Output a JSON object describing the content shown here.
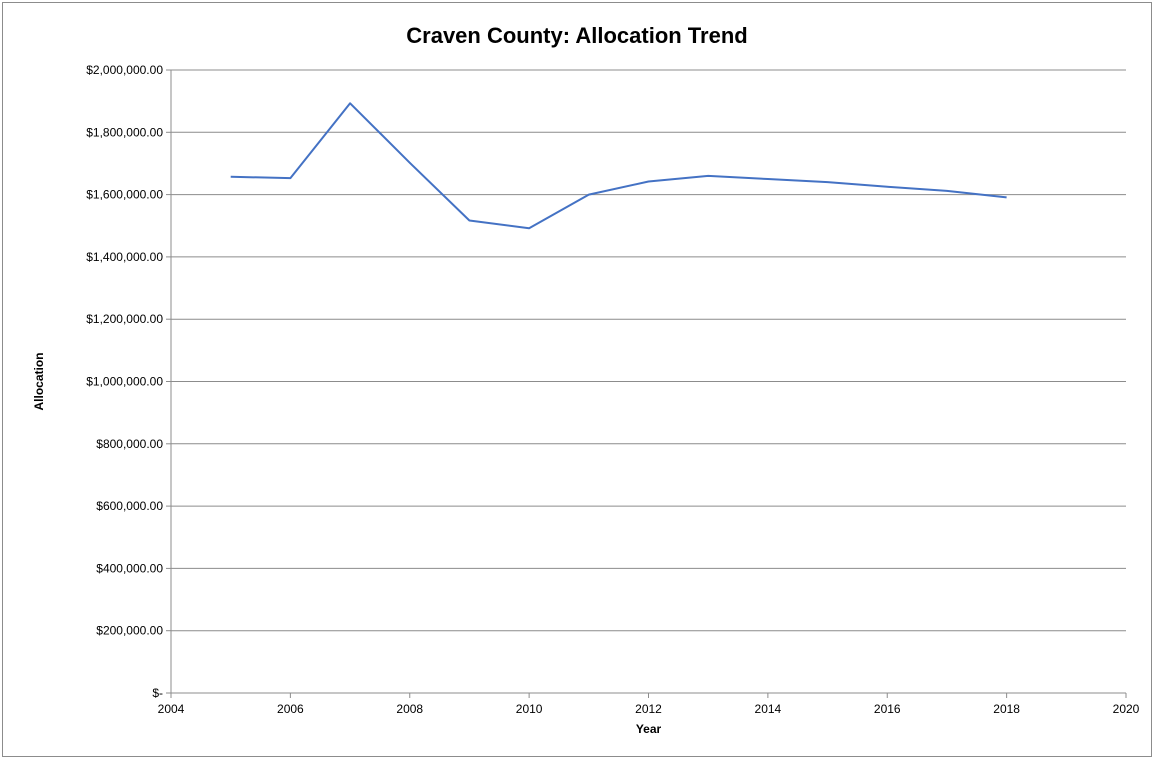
{
  "chart_data": {
    "type": "line",
    "title": "Craven County: Allocation Trend",
    "xlabel": "Year",
    "ylabel": "Allocation",
    "xlim": [
      2004,
      2020
    ],
    "ylim": [
      0,
      2000000
    ],
    "x_ticks": [
      2004,
      2006,
      2008,
      2010,
      2012,
      2014,
      2016,
      2018,
      2020
    ],
    "x_tick_labels": [
      "2004",
      "2006",
      "2008",
      "2010",
      "2012",
      "2014",
      "2016",
      "2018",
      "2020"
    ],
    "y_ticks": [
      0,
      200000,
      400000,
      600000,
      800000,
      1000000,
      1200000,
      1400000,
      1600000,
      1800000,
      2000000
    ],
    "y_tick_labels": [
      "$-",
      "$200,000.00",
      "$400,000.00",
      "$600,000.00",
      "$800,000.00",
      "$1,000,000.00",
      "$1,200,000.00",
      "$1,400,000.00",
      "$1,600,000.00",
      "$1,800,000.00",
      "$2,000,000.00"
    ],
    "grid": "horizontal",
    "legend": "none",
    "series": [
      {
        "color": "#4472C4",
        "x": [
          2005,
          2006,
          2007,
          2008,
          2009,
          2010,
          2011,
          2012,
          2013,
          2014,
          2015,
          2016,
          2017,
          2018
        ],
        "values": [
          1657000,
          1653000,
          1893000,
          1702000,
          1517000,
          1492000,
          1600000,
          1642000,
          1660000,
          1650000,
          1640000,
          1625000,
          1612000,
          1591000
        ]
      }
    ]
  }
}
